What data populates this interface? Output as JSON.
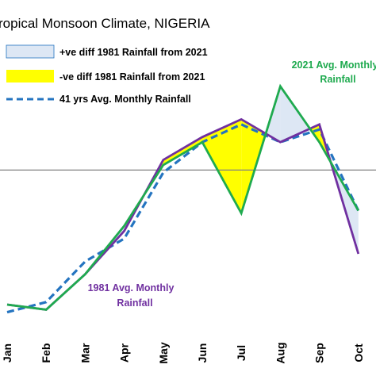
{
  "chart_data": {
    "type": "line",
    "title": "ropical Monsoon Climate, NIGERIA",
    "categories": [
      "Jan",
      "Feb",
      "Mar",
      "Apr",
      "May",
      "Jun",
      "Jul",
      "Aug",
      "Sep",
      "Oct"
    ],
    "ylim": [
      0,
      100
    ],
    "reference_line": 58,
    "series": [
      {
        "name": "2021 Avg. Monthly Rainfall",
        "color": "#1faa4f",
        "values": [
          5,
          3,
          17,
          36,
          60,
          69,
          41,
          91,
          69,
          42
        ]
      },
      {
        "name": "1981 Avg. Monthly Rainfall",
        "color": "#7030a0",
        "values": [
          5,
          3,
          17,
          34,
          62,
          71,
          78,
          69,
          76,
          25
        ]
      },
      {
        "name": "41 yrs Avg. Monthly Rainfall",
        "color": "#2474c0",
        "values": [
          2,
          6,
          22,
          31,
          57,
          69,
          76,
          69,
          74,
          42
        ]
      }
    ],
    "legend": [
      {
        "label": "+ve diff 1981 Rainfall from 2021",
        "swatch": "#dde7f4"
      },
      {
        "label": "-ve diff 1981 Rainfall from 2021",
        "swatch": "#ffff00"
      },
      {
        "label": "41 yrs Avg. Monthly Rainfall",
        "swatch": "#2474c0"
      }
    ],
    "annotations": [
      {
        "lines": [
          "2021 Avg. Monthly",
          "Rainfall"
        ],
        "color": "#1faa4f"
      },
      {
        "lines": [
          "1981 Avg. Monthly",
          "Rainfall"
        ],
        "color": "#7030a0"
      }
    ],
    "colors": {
      "positive_fill": "#dde7f4",
      "negative_fill": "#ffff00",
      "reference_line": "#808080"
    }
  }
}
